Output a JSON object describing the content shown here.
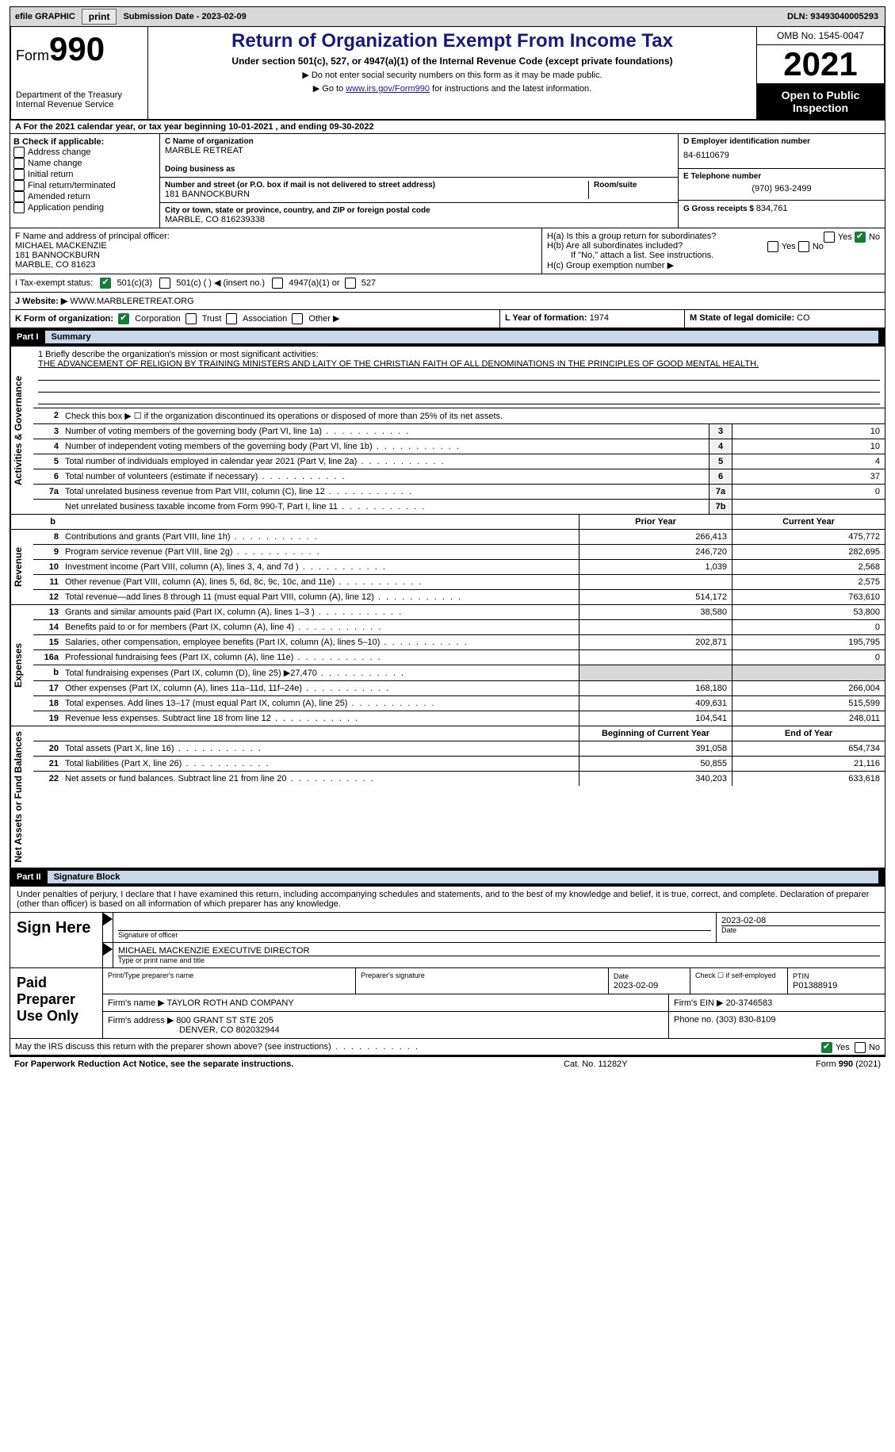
{
  "topbar": {
    "efile": "efile GRAPHIC",
    "print": "print",
    "subdate_lbl": "Submission Date - ",
    "subdate": "2023-02-09",
    "dln_lbl": "DLN: ",
    "dln": "93493040005293"
  },
  "header": {
    "form_prefix": "Form",
    "form_no": "990",
    "dept": "Department of the Treasury",
    "irs": "Internal Revenue Service",
    "title": "Return of Organization Exempt From Income Tax",
    "sub1": "Under section 501(c), 527, or 4947(a)(1) of the Internal Revenue Code (except private foundations)",
    "sub2": "▶ Do not enter social security numbers on this form as it may be made public.",
    "sub3_pre": "▶ Go to ",
    "sub3_link": "www.irs.gov/Form990",
    "sub3_post": " for instructions and the latest information.",
    "omb": "OMB No. 1545-0047",
    "year": "2021",
    "open": "Open to Public Inspection"
  },
  "rowA": "A For the 2021 calendar year, or tax year beginning 10-01-2021   , and ending 09-30-2022",
  "B": {
    "hdr": "B Check if applicable:",
    "opts": [
      "Address change",
      "Name change",
      "Initial return",
      "Final return/terminated",
      "Amended return",
      "Application pending"
    ]
  },
  "C": {
    "name_lbl": "C Name of organization",
    "name": "MARBLE RETREAT",
    "dba_lbl": "Doing business as",
    "street_lbl": "Number and street (or P.O. box if mail is not delivered to street address)",
    "street": "181 BANNOCKBURN",
    "room_lbl": "Room/suite",
    "city_lbl": "City or town, state or province, country, and ZIP or foreign postal code",
    "city": "MARBLE, CO  816239338"
  },
  "D": {
    "ein_lbl": "D Employer identification number",
    "ein": "84-6110679",
    "tel_lbl": "E Telephone number",
    "tel": "(970) 963-2499",
    "gross_lbl": "G Gross receipts $ ",
    "gross": "834,761"
  },
  "F": {
    "lbl": "F Name and address of principal officer:",
    "name": "MICHAEL MACKENZIE",
    "addr1": "181 BANNOCKBURN",
    "addr2": "MARBLE, CO  81623"
  },
  "H": {
    "a": "H(a)  Is this a group return for subordinates?",
    "a_yes": "Yes",
    "a_no": "No",
    "a_val": "No",
    "b": "H(b)  Are all subordinates included?",
    "b_note": "If \"No,\" attach a list. See instructions.",
    "c": "H(c)  Group exemption number ▶"
  },
  "I": {
    "lbl": "I   Tax-exempt status:",
    "c3": "501(c)(3)",
    "c": "501(c) (  ) ◀ (insert no.)",
    "a1": "4947(a)(1) or",
    "s527": "527"
  },
  "J": {
    "lbl": "J   Website: ▶",
    "val": "  WWW.MARBLERETREAT.ORG"
  },
  "K": {
    "lbl": "K Form of organization:",
    "corp": "Corporation",
    "trust": "Trust",
    "assoc": "Association",
    "other": "Other ▶"
  },
  "L": {
    "lbl": "L Year of formation: ",
    "val": "1974"
  },
  "M": {
    "lbl": "M State of legal domicile: ",
    "val": "CO"
  },
  "part1": {
    "pt": "Part I",
    "ttl": "Summary"
  },
  "mission": {
    "q": "1  Briefly describe the organization's mission or most significant activities:",
    "a": "THE ADVANCEMENT OF RELIGION BY TRAINING MINISTERS AND LAITY OF THE CHRISTIAN FAITH OF ALL DENOMINATIONS IN THE PRINCIPLES OF GOOD MENTAL HEALTH."
  },
  "gov": {
    "l2": "Check this box ▶ ☐  if the organization discontinued its operations or disposed of more than 25% of its net assets.",
    "rows": [
      {
        "n": "3",
        "d": "Number of voting members of the governing body (Part VI, line 1a)",
        "box": "3",
        "v": "10"
      },
      {
        "n": "4",
        "d": "Number of independent voting members of the governing body (Part VI, line 1b)",
        "box": "4",
        "v": "10"
      },
      {
        "n": "5",
        "d": "Total number of individuals employed in calendar year 2021 (Part V, line 2a)",
        "box": "5",
        "v": "4"
      },
      {
        "n": "6",
        "d": "Total number of volunteers (estimate if necessary)",
        "box": "6",
        "v": "37"
      },
      {
        "n": "7a",
        "d": "Total unrelated business revenue from Part VIII, column (C), line 12",
        "box": "7a",
        "v": "0"
      },
      {
        "n": "",
        "d": "Net unrelated business taxable income from Form 990-T, Part I, line 11",
        "box": "7b",
        "v": ""
      }
    ]
  },
  "colhdr": {
    "py": "Prior Year",
    "cy": "Current Year"
  },
  "rev": {
    "label": "Revenue",
    "rows": [
      {
        "n": "8",
        "d": "Contributions and grants (Part VIII, line 1h)",
        "py": "266,413",
        "cy": "475,772"
      },
      {
        "n": "9",
        "d": "Program service revenue (Part VIII, line 2g)",
        "py": "246,720",
        "cy": "282,695"
      },
      {
        "n": "10",
        "d": "Investment income (Part VIII, column (A), lines 3, 4, and 7d )",
        "py": "1,039",
        "cy": "2,568"
      },
      {
        "n": "11",
        "d": "Other revenue (Part VIII, column (A), lines 5, 6d, 8c, 9c, 10c, and 11e)",
        "py": "",
        "cy": "2,575"
      },
      {
        "n": "12",
        "d": "Total revenue—add lines 8 through 11 (must equal Part VIII, column (A), line 12)",
        "py": "514,172",
        "cy": "763,610"
      }
    ]
  },
  "exp": {
    "label": "Expenses",
    "rows": [
      {
        "n": "13",
        "d": "Grants and similar amounts paid (Part IX, column (A), lines 1–3 )",
        "py": "38,580",
        "cy": "53,800"
      },
      {
        "n": "14",
        "d": "Benefits paid to or for members (Part IX, column (A), line 4)",
        "py": "",
        "cy": "0"
      },
      {
        "n": "15",
        "d": "Salaries, other compensation, employee benefits (Part IX, column (A), lines 5–10)",
        "py": "202,871",
        "cy": "195,795"
      },
      {
        "n": "16a",
        "d": "Professional fundraising fees (Part IX, column (A), line 11e)",
        "py": "",
        "cy": "0"
      },
      {
        "n": "b",
        "d": "Total fundraising expenses (Part IX, column (D), line 25) ▶27,470",
        "py": "SHADE",
        "cy": "SHADE"
      },
      {
        "n": "17",
        "d": "Other expenses (Part IX, column (A), lines 11a–11d, 11f–24e)",
        "py": "168,180",
        "cy": "266,004"
      },
      {
        "n": "18",
        "d": "Total expenses. Add lines 13–17 (must equal Part IX, column (A), line 25)",
        "py": "409,631",
        "cy": "515,599"
      },
      {
        "n": "19",
        "d": "Revenue less expenses. Subtract line 18 from line 12",
        "py": "104,541",
        "cy": "248,011"
      }
    ]
  },
  "net": {
    "label": "Net Assets or Fund Balances",
    "hdr": {
      "py": "Beginning of Current Year",
      "cy": "End of Year"
    },
    "rows": [
      {
        "n": "20",
        "d": "Total assets (Part X, line 16)",
        "py": "391,058",
        "cy": "654,734"
      },
      {
        "n": "21",
        "d": "Total liabilities (Part X, line 26)",
        "py": "50,855",
        "cy": "21,116"
      },
      {
        "n": "22",
        "d": "Net assets or fund balances. Subtract line 21 from line 20",
        "py": "340,203",
        "cy": "633,618"
      }
    ]
  },
  "part2": {
    "pt": "Part II",
    "ttl": "Signature Block"
  },
  "decl": "Under penalties of perjury, I declare that I have examined this return, including accompanying schedules and statements, and to the best of my knowledge and belief, it is true, correct, and complete. Declaration of preparer (other than officer) is based on all information of which preparer has any knowledge.",
  "sign": {
    "lbl": "Sign Here",
    "sig_lbl": "Signature of officer",
    "date": "2023-02-08",
    "date_lbl": "Date",
    "name": "MICHAEL MACKENZIE  EXECUTIVE DIRECTOR",
    "name_lbl": "Type or print name and title"
  },
  "prep": {
    "lbl": "Paid Preparer Use Only",
    "r1": {
      "c1": "Print/Type preparer's name",
      "c2": "Preparer's signature",
      "c3l": "Date",
      "c3": "2023-02-09",
      "c4": "Check ☐ if self-employed",
      "c5l": "PTIN",
      "c5": "P01388919"
    },
    "r2": {
      "c1l": "Firm's name    ▶ ",
      "c1": "TAYLOR ROTH AND COMPANY",
      "c2l": "Firm's EIN ▶ ",
      "c2": "20-3746583"
    },
    "r3": {
      "c1l": "Firm's address ▶ ",
      "c1a": "800 GRANT ST STE 205",
      "c1b": "DENVER, CO  802032944",
      "c2l": "Phone no. ",
      "c2": "(303) 830-8109"
    }
  },
  "discuss": {
    "q": "May the IRS discuss this return with the preparer shown above? (see instructions)",
    "yes": "Yes",
    "no": "No"
  },
  "footer": {
    "l": "For Paperwork Reduction Act Notice, see the separate instructions.",
    "c": "Cat. No. 11282Y",
    "r": "Form 990 (2021)"
  },
  "vlabels": {
    "gov": "Activities & Governance"
  }
}
